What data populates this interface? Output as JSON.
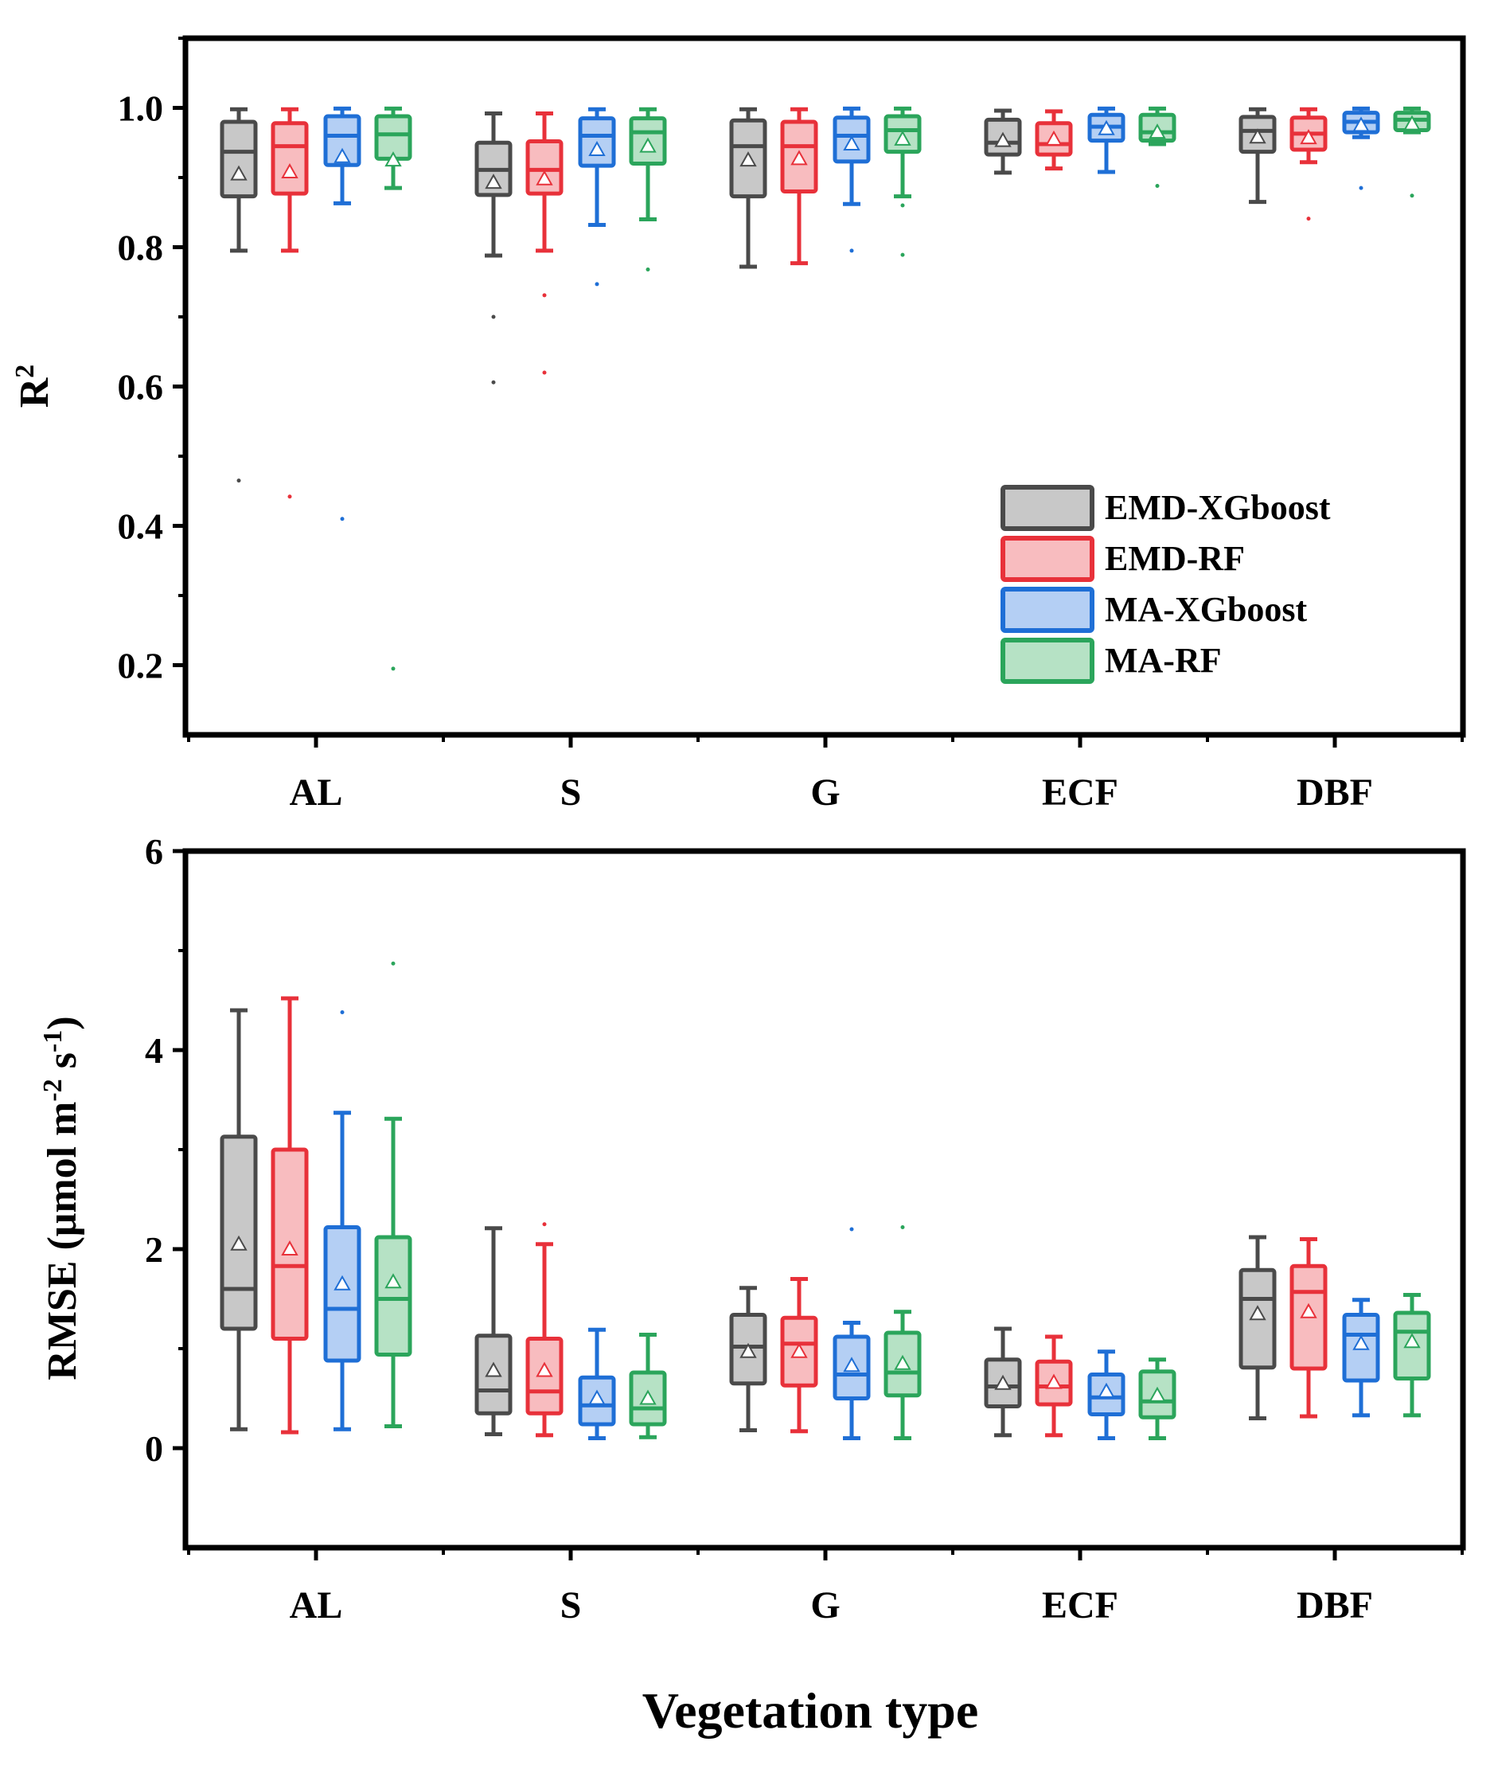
{
  "figure": {
    "xlabel": "Vegetation type"
  },
  "colors": {
    "EMD-XGboost": {
      "stroke": "#4a4a4a",
      "fill": "#c8c8c8"
    },
    "EMD-RF": {
      "stroke": "#e8313a",
      "fill": "#f8bcbf"
    },
    "MA-XGboost": {
      "stroke": "#1f6fd6",
      "fill": "#b4cff4"
    },
    "MA-RF": {
      "stroke": "#2ba55b",
      "fill": "#b6e2c5"
    }
  },
  "chart_data": [
    {
      "type": "box",
      "id": "r2",
      "title": "",
      "ylabel": "R",
      "ylabel_superscript": "2",
      "ylim": [
        0.1,
        1.1
      ],
      "yticks": [
        0.2,
        0.4,
        0.6,
        0.8,
        1.0
      ],
      "ytick_labels": [
        "0.2",
        "0.4",
        "0.6",
        "0.8",
        "1.0"
      ],
      "categories": [
        "AL",
        "S",
        "G",
        "ECF",
        "DBF"
      ],
      "legend": {
        "position": "lower-right",
        "entries": [
          "EMD-XGboost",
          "EMD-RF",
          "MA-XGboost",
          "MA-RF"
        ]
      },
      "series": [
        {
          "name": "EMD-XGboost",
          "boxes": [
            {
              "min": 0.795,
              "q1": 0.873,
              "median": 0.937,
              "q3": 0.98,
              "max": 0.998,
              "mean": 0.905,
              "outliers": [
                0.465
              ]
            },
            {
              "min": 0.788,
              "q1": 0.875,
              "median": 0.911,
              "q3": 0.95,
              "max": 0.992,
              "mean": 0.893,
              "outliers": [
                0.7,
                0.606
              ]
            },
            {
              "min": 0.772,
              "q1": 0.873,
              "median": 0.945,
              "q3": 0.982,
              "max": 0.998,
              "mean": 0.925,
              "outliers": []
            },
            {
              "min": 0.907,
              "q1": 0.933,
              "median": 0.95,
              "q3": 0.983,
              "max": 0.996,
              "mean": 0.953,
              "outliers": []
            },
            {
              "min": 0.865,
              "q1": 0.937,
              "median": 0.967,
              "q3": 0.987,
              "max": 0.998,
              "mean": 0.958,
              "outliers": []
            }
          ]
        },
        {
          "name": "EMD-RF",
          "boxes": [
            {
              "min": 0.795,
              "q1": 0.877,
              "median": 0.945,
              "q3": 0.978,
              "max": 0.998,
              "mean": 0.908,
              "outliers": [
                0.442
              ]
            },
            {
              "min": 0.795,
              "q1": 0.877,
              "median": 0.911,
              "q3": 0.952,
              "max": 0.992,
              "mean": 0.898,
              "outliers": [
                0.731,
                0.62
              ]
            },
            {
              "min": 0.777,
              "q1": 0.88,
              "median": 0.945,
              "q3": 0.98,
              "max": 0.998,
              "mean": 0.927,
              "outliers": []
            },
            {
              "min": 0.913,
              "q1": 0.933,
              "median": 0.948,
              "q3": 0.978,
              "max": 0.995,
              "mean": 0.955,
              "outliers": []
            },
            {
              "min": 0.922,
              "q1": 0.94,
              "median": 0.963,
              "q3": 0.986,
              "max": 0.998,
              "mean": 0.957,
              "outliers": [
                0.841
              ]
            }
          ]
        },
        {
          "name": "MA-XGboost",
          "boxes": [
            {
              "min": 0.863,
              "q1": 0.918,
              "median": 0.96,
              "q3": 0.988,
              "max": 0.999,
              "mean": 0.93,
              "outliers": [
                0.41
              ]
            },
            {
              "min": 0.832,
              "q1": 0.917,
              "median": 0.96,
              "q3": 0.985,
              "max": 0.998,
              "mean": 0.94,
              "outliers": [
                0.747
              ]
            },
            {
              "min": 0.862,
              "q1": 0.923,
              "median": 0.96,
              "q3": 0.986,
              "max": 0.999,
              "mean": 0.948,
              "outliers": [
                0.795
              ]
            },
            {
              "min": 0.908,
              "q1": 0.953,
              "median": 0.973,
              "q3": 0.99,
              "max": 0.999,
              "mean": 0.97,
              "outliers": []
            },
            {
              "min": 0.958,
              "q1": 0.965,
              "median": 0.98,
              "q3": 0.993,
              "max": 0.999,
              "mean": 0.975,
              "outliers": [
                0.885
              ]
            }
          ]
        },
        {
          "name": "MA-RF",
          "boxes": [
            {
              "min": 0.885,
              "q1": 0.927,
              "median": 0.962,
              "q3": 0.988,
              "max": 0.999,
              "mean": 0.925,
              "outliers": [
                0.195
              ]
            },
            {
              "min": 0.84,
              "q1": 0.92,
              "median": 0.965,
              "q3": 0.985,
              "max": 0.998,
              "mean": 0.945,
              "outliers": [
                0.768
              ]
            },
            {
              "min": 0.873,
              "q1": 0.937,
              "median": 0.968,
              "q3": 0.988,
              "max": 0.999,
              "mean": 0.955,
              "outliers": [
                0.86,
                0.789
              ]
            },
            {
              "min": 0.948,
              "q1": 0.953,
              "median": 0.965,
              "q3": 0.99,
              "max": 0.999,
              "mean": 0.965,
              "outliers": [
                0.888
              ]
            },
            {
              "min": 0.965,
              "q1": 0.968,
              "median": 0.983,
              "q3": 0.993,
              "max": 0.999,
              "mean": 0.977,
              "outliers": [
                0.874
              ]
            }
          ]
        }
      ]
    },
    {
      "type": "box",
      "id": "rmse",
      "title": "",
      "ylabel": "RMSE (μmol m-2 s-1)",
      "ylabel_parts": [
        "RMSE (μmol m",
        "-2",
        " s",
        "-1",
        ")"
      ],
      "ylim": [
        -1,
        6
      ],
      "yticks": [
        0,
        2,
        4,
        6
      ],
      "ytick_labels": [
        "0",
        "2",
        "4",
        "6"
      ],
      "categories": [
        "AL",
        "S",
        "G",
        "ECF",
        "DBF"
      ],
      "series": [
        {
          "name": "EMD-XGboost",
          "boxes": [
            {
              "min": 0.19,
              "q1": 1.2,
              "median": 1.6,
              "q3": 3.13,
              "max": 4.4,
              "mean": 2.05,
              "outliers": []
            },
            {
              "min": 0.14,
              "q1": 0.35,
              "median": 0.58,
              "q3": 1.13,
              "max": 2.21,
              "mean": 0.78,
              "outliers": []
            },
            {
              "min": 0.18,
              "q1": 0.65,
              "median": 1.02,
              "q3": 1.34,
              "max": 1.61,
              "mean": 0.97,
              "outliers": []
            },
            {
              "min": 0.13,
              "q1": 0.42,
              "median": 0.62,
              "q3": 0.89,
              "max": 1.2,
              "mean": 0.65,
              "outliers": []
            },
            {
              "min": 0.3,
              "q1": 0.81,
              "median": 1.5,
              "q3": 1.79,
              "max": 2.12,
              "mean": 1.35,
              "outliers": []
            }
          ]
        },
        {
          "name": "EMD-RF",
          "boxes": [
            {
              "min": 0.16,
              "q1": 1.1,
              "median": 1.83,
              "q3": 3.0,
              "max": 4.52,
              "mean": 2.0,
              "outliers": []
            },
            {
              "min": 0.13,
              "q1": 0.35,
              "median": 0.57,
              "q3": 1.1,
              "max": 2.05,
              "mean": 0.78,
              "outliers": [
                2.25
              ]
            },
            {
              "min": 0.17,
              "q1": 0.63,
              "median": 1.05,
              "q3": 1.31,
              "max": 1.7,
              "mean": 0.97,
              "outliers": []
            },
            {
              "min": 0.13,
              "q1": 0.44,
              "median": 0.62,
              "q3": 0.87,
              "max": 1.12,
              "mean": 0.66,
              "outliers": []
            },
            {
              "min": 0.32,
              "q1": 0.8,
              "median": 1.57,
              "q3": 1.83,
              "max": 2.1,
              "mean": 1.37,
              "outliers": []
            }
          ]
        },
        {
          "name": "MA-XGboost",
          "boxes": [
            {
              "min": 0.19,
              "q1": 0.88,
              "median": 1.4,
              "q3": 2.22,
              "max": 3.37,
              "mean": 1.65,
              "outliers": [
                4.38
              ]
            },
            {
              "min": 0.1,
              "q1": 0.24,
              "median": 0.43,
              "q3": 0.71,
              "max": 1.19,
              "mean": 0.5,
              "outliers": []
            },
            {
              "min": 0.1,
              "q1": 0.5,
              "median": 0.74,
              "q3": 1.12,
              "max": 1.26,
              "mean": 0.83,
              "outliers": [
                2.2
              ]
            },
            {
              "min": 0.1,
              "q1": 0.34,
              "median": 0.51,
              "q3": 0.74,
              "max": 0.97,
              "mean": 0.57,
              "outliers": []
            },
            {
              "min": 0.33,
              "q1": 0.68,
              "median": 1.14,
              "q3": 1.34,
              "max": 1.49,
              "mean": 1.05,
              "outliers": []
            }
          ]
        },
        {
          "name": "MA-RF",
          "boxes": [
            {
              "min": 0.22,
              "q1": 0.94,
              "median": 1.5,
              "q3": 2.12,
              "max": 3.31,
              "mean": 1.67,
              "outliers": [
                4.87
              ]
            },
            {
              "min": 0.11,
              "q1": 0.24,
              "median": 0.4,
              "q3": 0.76,
              "max": 1.14,
              "mean": 0.5,
              "outliers": []
            },
            {
              "min": 0.1,
              "q1": 0.53,
              "median": 0.76,
              "q3": 1.16,
              "max": 1.37,
              "mean": 0.85,
              "outliers": [
                2.22
              ]
            },
            {
              "min": 0.1,
              "q1": 0.31,
              "median": 0.47,
              "q3": 0.77,
              "max": 0.89,
              "mean": 0.53,
              "outliers": []
            },
            {
              "min": 0.33,
              "q1": 0.7,
              "median": 1.17,
              "q3": 1.36,
              "max": 1.54,
              "mean": 1.07,
              "outliers": []
            }
          ]
        }
      ]
    }
  ]
}
